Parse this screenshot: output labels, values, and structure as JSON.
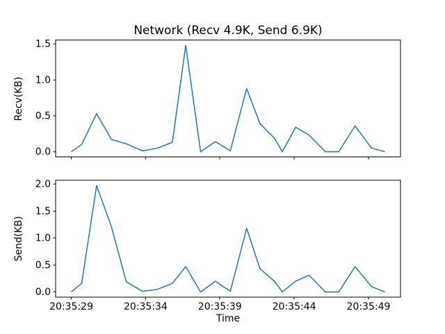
{
  "figure": {
    "title": "Network (Recv 4.9K, Send 6.9K)",
    "xlabel": "Time",
    "background": "#ffffff",
    "line_color": "#1f77b4",
    "spine_color": "#000000"
  },
  "x_axis": {
    "xlim": [
      -1.055,
      22.155
    ],
    "xtick_values": [
      0,
      5,
      10,
      15,
      20
    ],
    "xtick_labels": [
      "20:35:29",
      "20:35:34",
      "20:35:39",
      "20:35:44",
      "20:35:49"
    ]
  },
  "chart_data": [
    {
      "type": "line",
      "name": "recv",
      "ylabel": "Recv(KB)",
      "x": [
        0.0,
        0.7,
        1.7,
        2.7,
        3.7,
        4.8,
        5.8,
        6.8,
        7.7,
        8.7,
        9.7,
        10.7,
        11.8,
        12.7,
        13.7,
        14.2,
        15.1,
        16.0,
        17.1,
        18.0,
        19.1,
        20.2,
        21.1
      ],
      "values": [
        0.0,
        0.1,
        0.53,
        0.17,
        0.11,
        0.01,
        0.05,
        0.13,
        1.48,
        0.0,
        0.14,
        0.01,
        0.88,
        0.39,
        0.18,
        0.0,
        0.34,
        0.23,
        0.0,
        0.0,
        0.36,
        0.05,
        0.0
      ],
      "ylim": [
        -0.074,
        1.554
      ],
      "ytick_values": [
        0.0,
        0.5,
        1.0,
        1.5
      ],
      "ytick_labels": [
        "0.0",
        "0.5",
        "1.0",
        "1.5"
      ]
    },
    {
      "type": "line",
      "name": "send",
      "ylabel": "Send(KB)",
      "x": [
        0.0,
        0.7,
        1.7,
        2.7,
        3.7,
        4.8,
        5.8,
        6.8,
        7.7,
        8.7,
        9.7,
        10.7,
        11.8,
        12.7,
        13.7,
        14.2,
        15.1,
        16.0,
        17.1,
        18.0,
        19.1,
        20.2,
        21.1
      ],
      "values": [
        0.0,
        0.16,
        1.97,
        1.21,
        0.19,
        0.01,
        0.05,
        0.16,
        0.47,
        0.0,
        0.2,
        0.01,
        1.18,
        0.43,
        0.19,
        0.0,
        0.2,
        0.31,
        0.0,
        0.0,
        0.47,
        0.1,
        0.0
      ],
      "ylim": [
        -0.0985,
        2.0685
      ],
      "ytick_values": [
        0.0,
        0.5,
        1.0,
        1.5,
        2.0
      ],
      "ytick_labels": [
        "0.0",
        "0.5",
        "1.0",
        "1.5",
        "2.0"
      ]
    }
  ]
}
